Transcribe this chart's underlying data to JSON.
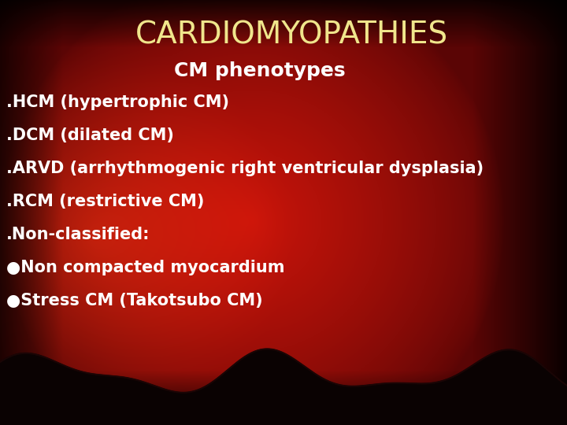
{
  "title": "CARDIOMYOPATHIES",
  "title_color": "#F0E68C",
  "title_fontsize": 28,
  "subtitle": "CM phenotypes",
  "subtitle_color": "#FFFFFF",
  "subtitle_fontsize": 18,
  "bullet_items": [
    ".HCM (hypertrophic CM)",
    ".DCM (dilated CM)",
    ".ARVD (arrhythmogenic right ventricular dysplasia)",
    ".RCM (restrictive CM)",
    ".Non-classified:",
    "●Non compacted myocardium",
    "●Stress CM (Takotsubo CM)"
  ],
  "bullet_color": "#FFFFFF",
  "bullet_fontsize": 15,
  "fig_width": 7.2,
  "fig_height": 5.4,
  "dpi": 100
}
